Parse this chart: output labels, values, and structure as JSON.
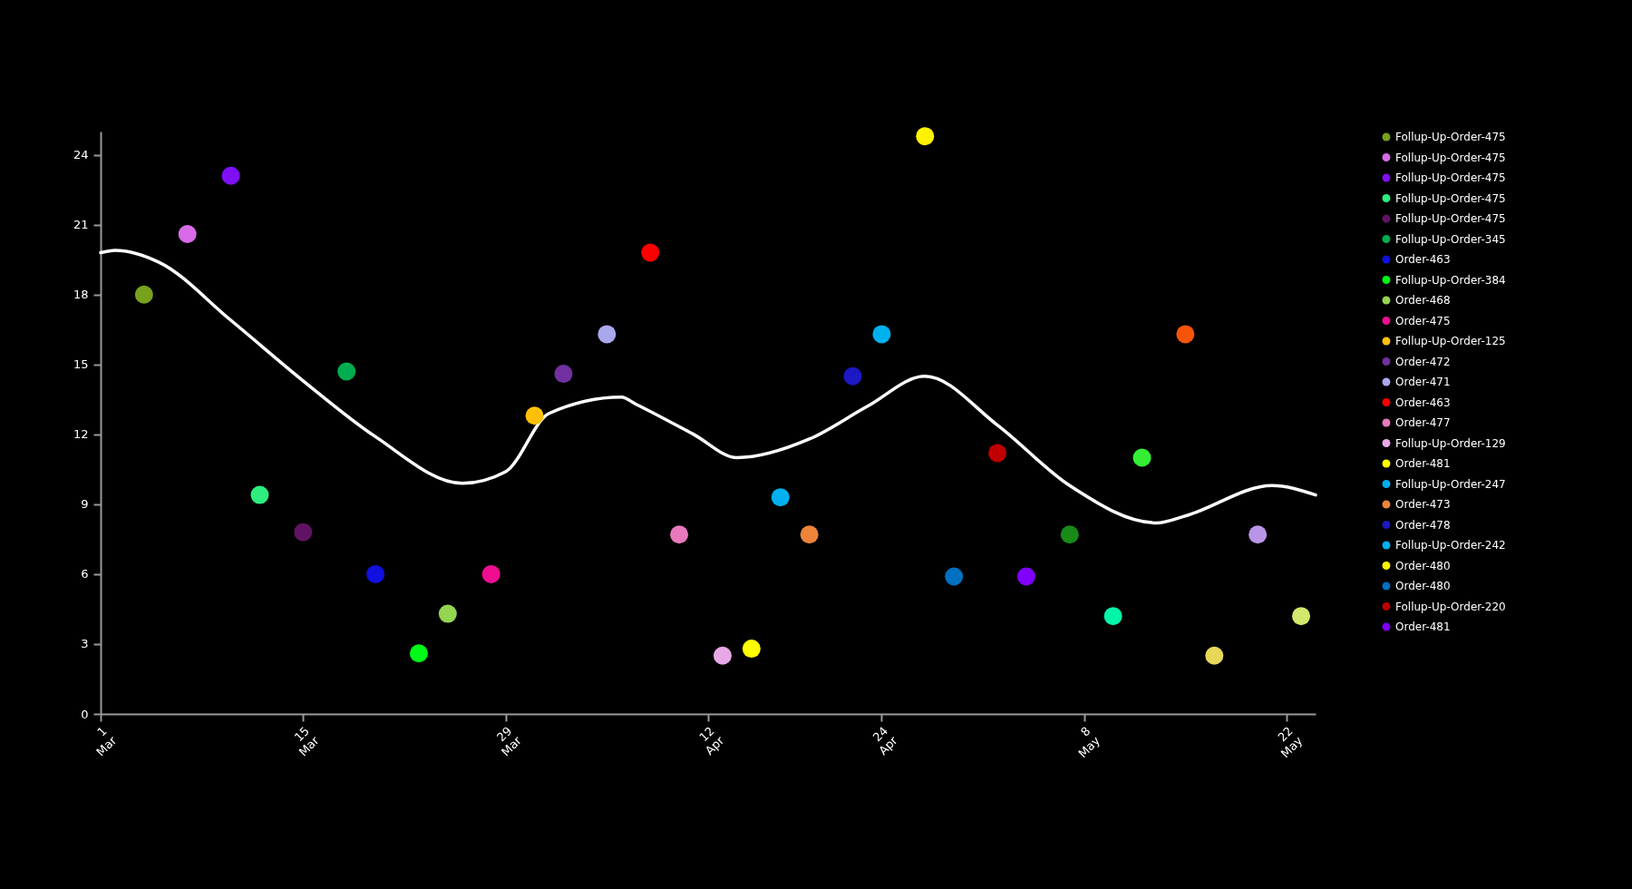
{
  "chart_data": {
    "type": "scatter",
    "marker": "circle",
    "legend": "top right",
    "grid": false,
    "xlim": [
      "--03-01",
      "--05-24"
    ],
    "xticks": [
      {
        "value": "--03-01",
        "label": "1 Mar"
      },
      {
        "value": "--03-15",
        "label": "15 Mar"
      },
      {
        "value": "--03-29",
        "label": "29 Mar"
      },
      {
        "value": "--04-12",
        "label": "12 Apr"
      },
      {
        "value": "--04-24",
        "label": "24 Apr"
      },
      {
        "value": "--05-08",
        "label": "8 May"
      },
      {
        "value": "--05-22",
        "label": "22 May"
      }
    ],
    "ylim": [
      0,
      25
    ],
    "yticks": [
      0,
      3,
      6,
      9,
      12,
      15,
      18,
      21,
      24
    ],
    "series": [
      {
        "name": "Follup-Up-Order-475",
        "color": "#76a21e",
        "x": [
          "--03-04"
        ],
        "values": [
          18
        ]
      },
      {
        "name": "Follup-Up-Order-475",
        "color": "#d86be8",
        "x": [
          "--03-07"
        ],
        "values": [
          20.6
        ]
      },
      {
        "name": "Follup-Up-Order-475",
        "color": "#7f10f5",
        "x": [
          "--03-10"
        ],
        "values": [
          23.1
        ]
      },
      {
        "name": "Follup-Up-Order-475",
        "color": "#2ded7e",
        "x": [
          "--03-12"
        ],
        "values": [
          9.4
        ]
      },
      {
        "name": "Follup-Up-Order-475",
        "color": "#611363",
        "x": [
          "--03-15"
        ],
        "values": [
          7.8
        ]
      },
      {
        "name": "Follup-Up-Order-345",
        "color": "#00ae4f",
        "x": [
          "--03-18"
        ],
        "values": [
          14.7
        ]
      },
      {
        "name": "Order-463",
        "color": "#1010e0",
        "x": [
          "--03-20"
        ],
        "values": [
          6.0
        ]
      },
      {
        "name": "Follup-Up-Order-384",
        "color": "#00f916",
        "x": [
          "--03-23"
        ],
        "values": [
          2.6
        ]
      },
      {
        "name": "Order-468",
        "color": "#94d552",
        "x": [
          "--03-25"
        ],
        "values": [
          4.3
        ]
      },
      {
        "name": "Order-475",
        "color": "#ef0e91",
        "x": [
          "--03-28"
        ],
        "values": [
          6.0
        ]
      },
      {
        "name": "Follup-Up-Order-125",
        "color": "#ffc107",
        "x": [
          "--03-31"
        ],
        "values": [
          12.8
        ]
      },
      {
        "name": "Order-472",
        "color": "#7030a0",
        "x": [
          "--04-02"
        ],
        "values": [
          14.6
        ]
      },
      {
        "name": "Order-471",
        "color": "#aaa8ed",
        "x": [
          "--04-05"
        ],
        "values": [
          16.3
        ]
      },
      {
        "name": "Order-463",
        "color": "#ff0000",
        "x": [
          "--04-08"
        ],
        "values": [
          19.8
        ]
      },
      {
        "name": "Order-477",
        "color": "#e979bd",
        "x": [
          "--04-10"
        ],
        "values": [
          7.7
        ]
      },
      {
        "name": "Follup-Up-Order-129",
        "color": "#e8a8e8",
        "x": [
          "--04-13"
        ],
        "values": [
          2.5
        ]
      },
      {
        "name": "Order-481",
        "color": "#ffff00",
        "x": [
          "--04-15"
        ],
        "values": [
          2.8
        ]
      },
      {
        "name": "Follup-Up-Order-247",
        "color": "#00b0f0",
        "x": [
          "--04-17"
        ],
        "values": [
          9.3
        ]
      },
      {
        "name": "Order-473",
        "color": "#ed843a",
        "x": [
          "--04-19"
        ],
        "values": [
          7.7
        ]
      },
      {
        "name": "Order-478",
        "color": "#1c18c4",
        "x": [
          "--04-22"
        ],
        "values": [
          14.5
        ]
      },
      {
        "name": "Follup-Up-Order-242",
        "color": "#00b1ef",
        "x": [
          "--04-24"
        ],
        "values": [
          16.3
        ]
      },
      {
        "name": "Order-480",
        "color": "#fff200",
        "x": [
          "--04-27"
        ],
        "values": [
          24.8
        ]
      },
      {
        "name": "Order-480",
        "color": "#0070c0",
        "x": [
          "--04-29"
        ],
        "values": [
          5.9
        ]
      },
      {
        "name": "Follup-Up-Order-220",
        "color": "#c00000",
        "x": [
          "--05-02"
        ],
        "values": [
          11.2
        ]
      },
      {
        "name": "Order-481",
        "color": "#7f00ff",
        "x": [
          "--05-04"
        ],
        "values": [
          5.9
        ]
      },
      {
        "color": "#178a17",
        "x": [
          "--05-07"
        ],
        "values": [
          7.7
        ]
      },
      {
        "color": "#00f5a8",
        "x": [
          "--05-10"
        ],
        "values": [
          4.2
        ]
      },
      {
        "color": "#33ee33",
        "x": [
          "--05-12"
        ],
        "values": [
          11.0
        ]
      },
      {
        "color": "#f85408",
        "x": [
          "--05-15"
        ],
        "values": [
          16.3
        ]
      },
      {
        "color": "#e8d85a",
        "x": [
          "--05-17"
        ],
        "values": [
          2.5
        ]
      },
      {
        "color": "#b995ea",
        "x": [
          "--05-20"
        ],
        "values": [
          7.7
        ]
      },
      {
        "color": "#d2e86c",
        "x": [
          "--05-23"
        ],
        "values": [
          4.2
        ]
      },
      {
        "type": "line",
        "marker": "none",
        "color": "#ffffff",
        "x": [
          "--03-01",
          "--03-02",
          "--03-05",
          "--03-10",
          "--03-15",
          "--03-20",
          "--03-26",
          "--03-29",
          "--04-01",
          "--04-06",
          "--04-07",
          "--04-11",
          "--04-14",
          "--04-19",
          "--04-23",
          "--04-27",
          "--05-02",
          "--05-07",
          "--05-13",
          "--05-15",
          "--05-21",
          "--05-24"
        ],
        "values": [
          19.8,
          19.9,
          19.4,
          16.9,
          14.3,
          11.9,
          9.9,
          10.4,
          12.9,
          13.6,
          13.3,
          12.0,
          11.0,
          11.8,
          13.2,
          14.5,
          12.4,
          9.8,
          8.2,
          8.5,
          9.8,
          9.4
        ]
      }
    ]
  }
}
